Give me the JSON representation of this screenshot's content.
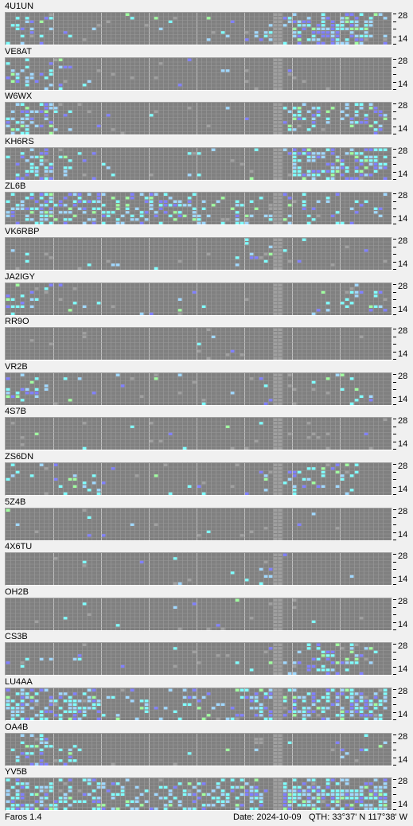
{
  "scale": {
    "top": "28",
    "bottom": "14"
  },
  "status": {
    "app": "Faros 1.4",
    "date": "Date: 2024-10-09",
    "qth": "QTH: 33°37' N  117°38' W"
  },
  "colors": {
    "background": "#f0f0f0",
    "no_signal": "#808080",
    "gap_column": "#a0a0a0",
    "signal_weak": "#8080ff",
    "signal_mid": "#a0d8ff",
    "signal_strong": "#80ffff",
    "signal_best": "#a0ffa0"
  },
  "beacons": [
    {
      "callsign": "4U1UN",
      "activity": [
        0.2,
        0.25,
        0.15,
        0.05,
        0.02,
        0.02,
        0.02,
        0.02,
        0.02,
        0.02,
        0.02,
        0.03,
        0.05,
        0.05,
        0.05,
        0.1,
        0.25,
        0.55,
        0.75,
        0.75,
        0.8,
        0.7,
        0.55,
        0.1
      ],
      "gap": true
    },
    {
      "callsign": "VE8AT",
      "activity": [
        0.15,
        0.3,
        0.25,
        0.1,
        0.02,
        0.01,
        0.01,
        0.02,
        0.01,
        0.01,
        0.01,
        0.02,
        0.01,
        0.02,
        0.01,
        0.01,
        0.01,
        0.01,
        0.01,
        0.02,
        0.01,
        0.01,
        0.02,
        0.01
      ],
      "gap": true
    },
    {
      "callsign": "W6WX",
      "activity": [
        0.5,
        0.55,
        0.45,
        0.25,
        0.05,
        0.02,
        0.02,
        0.02,
        0.02,
        0.02,
        0.02,
        0.05,
        0.02,
        0.02,
        0.02,
        0.02,
        0.05,
        0.25,
        0.45,
        0.3,
        0.35,
        0.3,
        0.35,
        0.45
      ],
      "gap": true
    },
    {
      "callsign": "KH6RS",
      "activity": [
        0.25,
        0.55,
        0.55,
        0.35,
        0.2,
        0.1,
        0.03,
        0.02,
        0.02,
        0.03,
        0.02,
        0.03,
        0.02,
        0.02,
        0.02,
        0.02,
        0.05,
        0.2,
        0.55,
        0.65,
        0.6,
        0.55,
        0.55,
        0.55
      ],
      "gap": true
    },
    {
      "callsign": "ZL6B",
      "activity": [
        0.45,
        0.55,
        0.55,
        0.45,
        0.4,
        0.4,
        0.35,
        0.4,
        0.4,
        0.4,
        0.4,
        0.35,
        0.3,
        0.3,
        0.3,
        0.25,
        0.35,
        0.4,
        0.2,
        0.15,
        0.15,
        0.15,
        0.15,
        0.15
      ],
      "gap": true
    },
    {
      "callsign": "VK6RBP",
      "activity": [
        0.05,
        0.05,
        0.02,
        0.02,
        0.02,
        0.02,
        0.02,
        0.02,
        0.02,
        0.02,
        0.02,
        0.02,
        0.02,
        0.02,
        0.02,
        0.1,
        0.2,
        0.2,
        0.05,
        0.02,
        0.02,
        0.02,
        0.05,
        0.05
      ],
      "gap": true
    },
    {
      "callsign": "JA2IGY",
      "activity": [
        0.3,
        0.25,
        0.1,
        0.05,
        0.02,
        0.02,
        0.02,
        0.02,
        0.02,
        0.02,
        0.02,
        0.02,
        0.02,
        0.02,
        0.02,
        0.02,
        0.02,
        0.02,
        0.02,
        0.02,
        0.1,
        0.2,
        0.25,
        0.35
      ],
      "gap": true
    },
    {
      "callsign": "RR9O",
      "activity": [
        0.01,
        0.02,
        0.01,
        0.02,
        0.01,
        0.01,
        0.01,
        0.02,
        0.01,
        0.01,
        0.01,
        0.02,
        0.01,
        0.01,
        0.01,
        0.01,
        0.01,
        0.01,
        0.01,
        0.01,
        0.01,
        0.01,
        0.01,
        0.01
      ],
      "gap": true
    },
    {
      "callsign": "VR2B",
      "activity": [
        0.35,
        0.3,
        0.15,
        0.02,
        0.02,
        0.02,
        0.02,
        0.02,
        0.02,
        0.02,
        0.02,
        0.02,
        0.02,
        0.02,
        0.02,
        0.05,
        0.15,
        0.1,
        0.05,
        0.1,
        0.1,
        0.05,
        0.1,
        0.05
      ],
      "gap": true
    },
    {
      "callsign": "4S7B",
      "activity": [
        0.01,
        0.01,
        0.01,
        0.01,
        0.01,
        0.01,
        0.01,
        0.01,
        0.01,
        0.01,
        0.01,
        0.01,
        0.01,
        0.01,
        0.01,
        0.01,
        0.01,
        0.01,
        0.01,
        0.01,
        0.01,
        0.01,
        0.01,
        0.01
      ],
      "gap": true
    },
    {
      "callsign": "ZS6DN",
      "activity": [
        0.2,
        0.15,
        0.15,
        0.15,
        0.2,
        0.15,
        0.05,
        0.02,
        0.02,
        0.02,
        0.02,
        0.05,
        0.02,
        0.02,
        0.02,
        0.05,
        0.2,
        0.25,
        0.3,
        0.35,
        0.3,
        0.25,
        0.05,
        0.02
      ],
      "gap": true
    },
    {
      "callsign": "5Z4B",
      "activity": [
        0.01,
        0.01,
        0.01,
        0.02,
        0.01,
        0.01,
        0.01,
        0.01,
        0.01,
        0.01,
        0.01,
        0.01,
        0.01,
        0.01,
        0.01,
        0.01,
        0.01,
        0.01,
        0.01,
        0.01,
        0.01,
        0.01,
        0.01,
        0.01
      ],
      "gap": true
    },
    {
      "callsign": "4X6TU",
      "activity": [
        0.01,
        0.01,
        0.01,
        0.01,
        0.01,
        0.01,
        0.01,
        0.01,
        0.01,
        0.01,
        0.01,
        0.01,
        0.01,
        0.01,
        0.01,
        0.05,
        0.2,
        0.05,
        0.01,
        0.01,
        0.01,
        0.01,
        0.01,
        0.01
      ],
      "gap": true
    },
    {
      "callsign": "OH2B",
      "activity": [
        0.01,
        0.01,
        0.01,
        0.01,
        0.01,
        0.01,
        0.01,
        0.01,
        0.01,
        0.01,
        0.01,
        0.01,
        0.01,
        0.01,
        0.01,
        0.01,
        0.01,
        0.01,
        0.01,
        0.01,
        0.01,
        0.01,
        0.01,
        0.01
      ],
      "gap": true
    },
    {
      "callsign": "CS3B",
      "activity": [
        0.1,
        0.05,
        0.05,
        0.02,
        0.02,
        0.02,
        0.02,
        0.02,
        0.02,
        0.02,
        0.02,
        0.02,
        0.02,
        0.02,
        0.02,
        0.02,
        0.1,
        0.15,
        0.4,
        0.45,
        0.35,
        0.3,
        0.2,
        0.05
      ],
      "gap": true
    },
    {
      "callsign": "LU4AA",
      "activity": [
        0.65,
        0.6,
        0.55,
        0.55,
        0.45,
        0.4,
        0.2,
        0.15,
        0.2,
        0.2,
        0.2,
        0.2,
        0.2,
        0.25,
        0.3,
        0.45,
        0.55,
        0.2,
        0.5,
        0.55,
        0.5,
        0.55,
        0.6,
        0.55
      ],
      "gap": true
    },
    {
      "callsign": "OA4B",
      "activity": [
        0.25,
        0.35,
        0.4,
        0.3,
        0.2,
        0.02,
        0.02,
        0.02,
        0.02,
        0.02,
        0.02,
        0.02,
        0.02,
        0.02,
        0.02,
        0.02,
        0.02,
        0.02,
        0.05,
        0.05,
        0.1,
        0.1,
        0.15,
        0.05
      ],
      "gap": true
    },
    {
      "callsign": "YV5B",
      "activity": [
        0.65,
        0.6,
        0.55,
        0.5,
        0.45,
        0.45,
        0.4,
        0.35,
        0.35,
        0.4,
        0.4,
        0.4,
        0.4,
        0.5,
        0.6,
        0.6,
        0.2,
        0.8,
        0.8,
        0.8,
        0.75,
        0.75,
        0.75,
        0.8
      ],
      "gap": true
    }
  ]
}
